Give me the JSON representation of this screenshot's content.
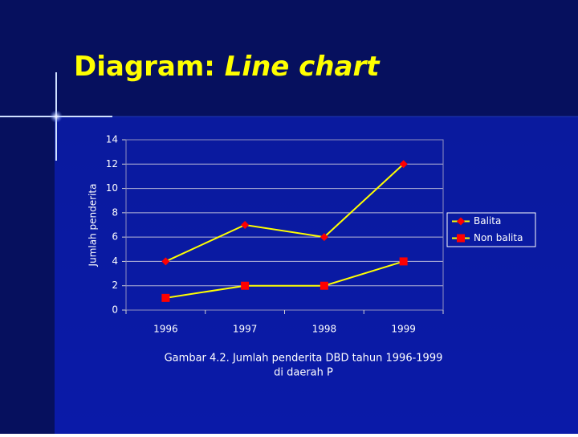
{
  "chart_data": {
    "type": "line",
    "title": "Diagram:",
    "title_emphasis": "Line chart",
    "y_label": "Jumlah penderita",
    "caption": [
      "Gambar 4.2. Jumlah penderita DBD tahun 1996-1999",
      "di daerah P"
    ],
    "categories": [
      "1996",
      "1997",
      "1998",
      "1999"
    ],
    "series": [
      {
        "name": "Balita",
        "color": "#ffff00",
        "marker": "diamond",
        "marker_color": "#ff0000",
        "values": [
          4,
          7,
          6,
          12
        ]
      },
      {
        "name": "Non balita",
        "color": "#ffff00",
        "marker": "square",
        "marker_color": "#ff0000",
        "values": [
          1,
          2,
          2,
          4
        ]
      }
    ],
    "ylim": [
      0,
      14
    ],
    "yticks": [
      0,
      2,
      4,
      6,
      8,
      10,
      12,
      14
    ],
    "grid": true,
    "legend": "right"
  }
}
